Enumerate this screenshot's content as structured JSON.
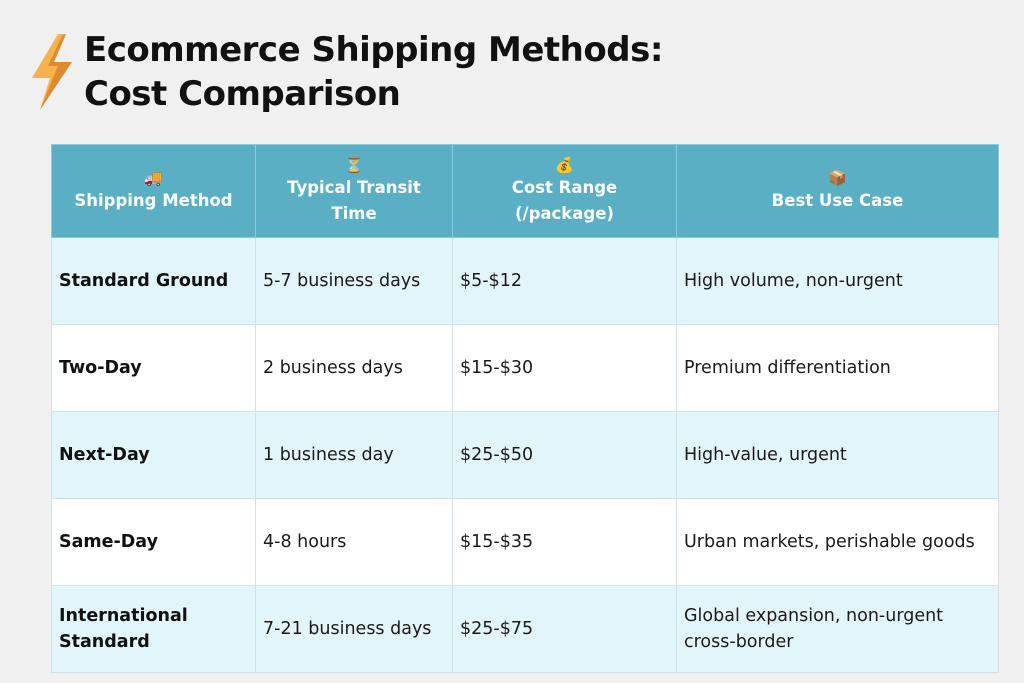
{
  "header": {
    "icon": "lightning-bolt-icon",
    "title_line1": "Ecommerce Shipping Methods:",
    "title_line2": "Cost Comparison"
  },
  "table": {
    "columns": [
      {
        "icon": "delivery-truck-icon",
        "emoji": "🚚",
        "label": "Shipping Method"
      },
      {
        "icon": "hourglass-icon",
        "emoji": "⏳",
        "label": "Typical Transit Time"
      },
      {
        "icon": "money-bag-icon",
        "emoji": "💰",
        "label": "Cost Range (/package)"
      },
      {
        "icon": "package-icon",
        "emoji": "📦",
        "label": "Best Use Case"
      }
    ],
    "rows": [
      {
        "method": "Standard Ground",
        "transit": "5-7 business days",
        "cost": "$5-$12",
        "use_case": "High volume, non-urgent"
      },
      {
        "method": "Two-Day",
        "transit": "2 business days",
        "cost": "$15-$30",
        "use_case": "Premium differentiation"
      },
      {
        "method": "Next-Day",
        "transit": "1 business day",
        "cost": "$25-$50",
        "use_case": "High-value, urgent"
      },
      {
        "method": "Same-Day",
        "transit": "4-8 hours",
        "cost": "$15-$35",
        "use_case": "Urban markets, perishable goods"
      },
      {
        "method": "International Standard",
        "transit": "7-21 business days",
        "cost": "$25-$75",
        "use_case": "Global expansion, non-urgent cross-border"
      }
    ]
  },
  "colors": {
    "header_bg": "#5aafc4",
    "row_alt_bg": "#e2f5fb",
    "row_bg": "#ffffff",
    "page_bg": "#f0f0f0",
    "bolt_light": "#f6b24c",
    "bolt_dark": "#d9822b"
  }
}
